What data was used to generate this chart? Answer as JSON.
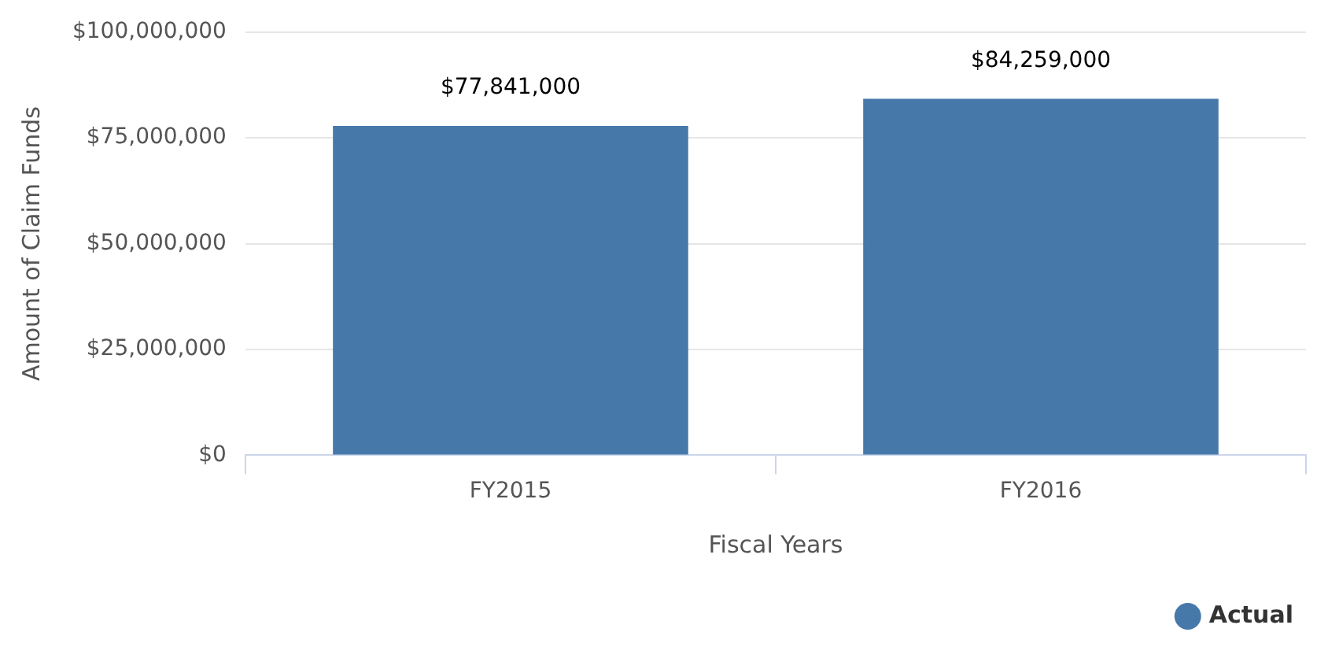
{
  "chart_data": {
    "type": "bar",
    "xlabel": "Fiscal Years",
    "ylabel": "Amount of Claim Funds",
    "categories": [
      "FY2015",
      "FY2016"
    ],
    "series": [
      {
        "name": "Actual",
        "color": "#4679aa",
        "values": [
          77841000,
          84259000
        ],
        "value_labels": [
          "$77,841,000",
          "$84,259,000"
        ]
      }
    ],
    "ylim": [
      0,
      100000000
    ],
    "yticks": [
      {
        "value": 0,
        "label": "$0"
      },
      {
        "value": 25000000,
        "label": "$25,000,000"
      },
      {
        "value": 50000000,
        "label": "$50,000,000"
      },
      {
        "value": 75000000,
        "label": "$75,000,000"
      },
      {
        "value": 100000000,
        "label": "$100,000,000"
      }
    ],
    "grid": "y",
    "legend": "bottom right"
  }
}
